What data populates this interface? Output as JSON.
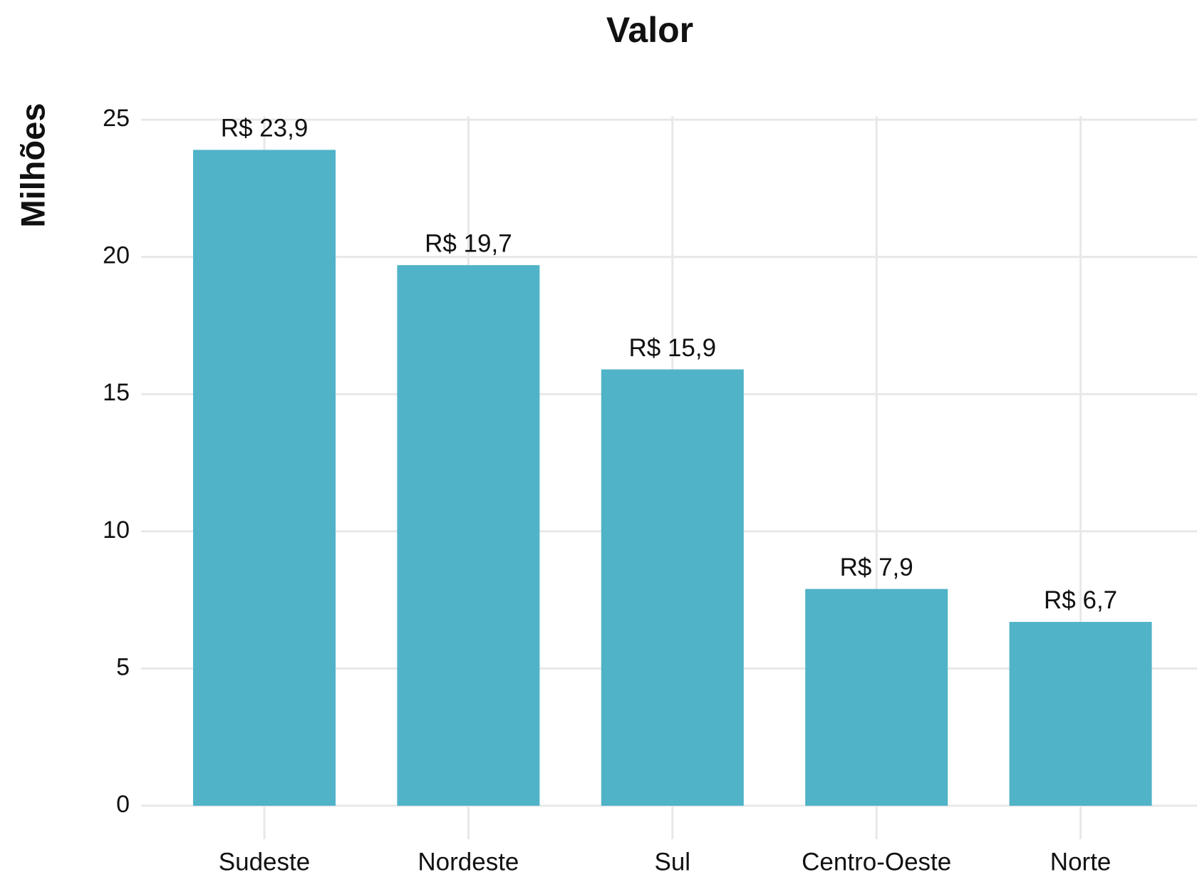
{
  "chart_data": {
    "type": "bar",
    "title": "Valor",
    "y_label": "Milhões",
    "categories": [
      "Sudeste",
      "Nordeste",
      "Sul",
      "Centro-Oeste",
      "Norte"
    ],
    "values": [
      23.9,
      19.7,
      15.9,
      7.9,
      6.7
    ],
    "value_labels": [
      "R$ 23,9",
      "R$ 19,7",
      "R$ 15,9",
      "R$ 7,9",
      "R$ 6,7"
    ],
    "color": "#50b3c8",
    "ylim": [
      0,
      25
    ],
    "yticks": [
      0,
      5,
      10,
      15,
      20,
      25
    ],
    "grid": true
  }
}
